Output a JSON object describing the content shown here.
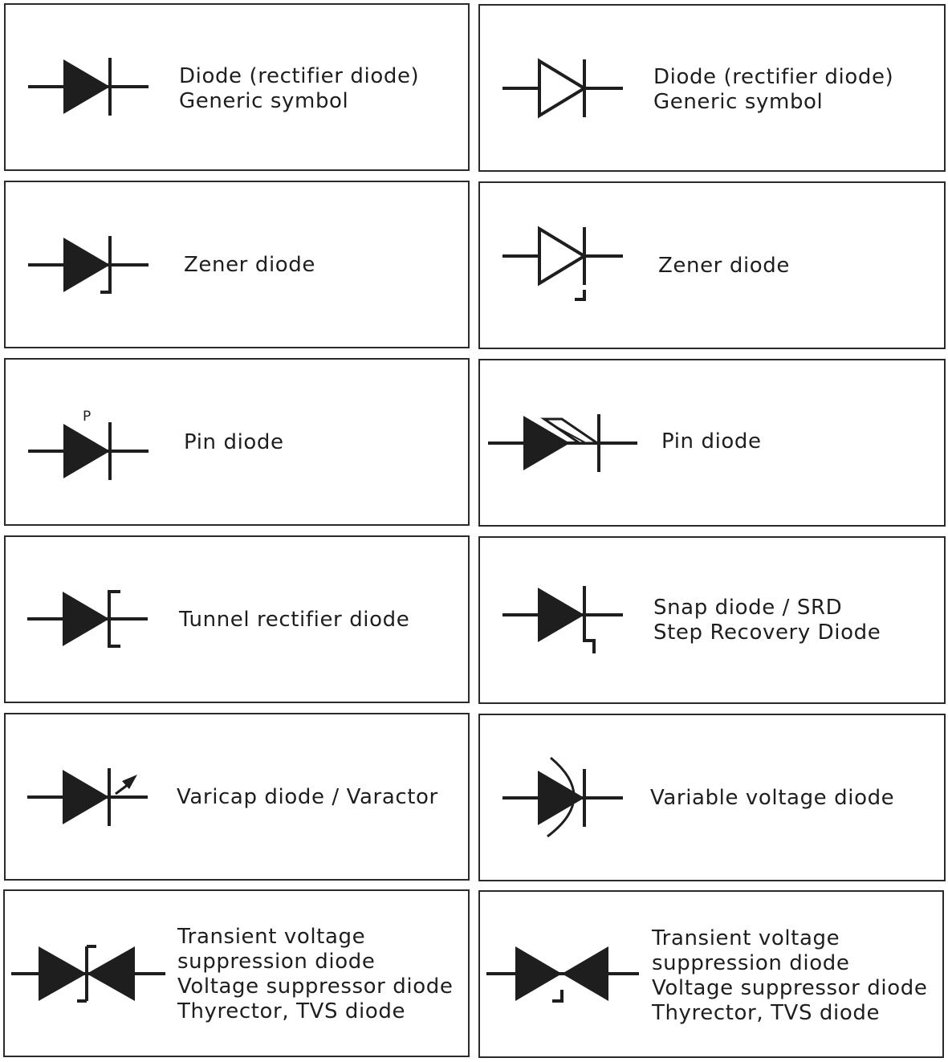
{
  "symbols": [
    {
      "id": "generic-filled",
      "lines": [
        "Diode (rectifier diode)",
        "Generic symbol"
      ]
    },
    {
      "id": "generic-outline",
      "lines": [
        "Diode (rectifier diode)",
        "Generic symbol"
      ]
    },
    {
      "id": "zener-filled",
      "lines": [
        "Zener diode"
      ]
    },
    {
      "id": "zener-outline",
      "lines": [
        "Zener diode"
      ]
    },
    {
      "id": "pin-filled",
      "lines": [
        "Pin diode"
      ],
      "symbol_text": "P"
    },
    {
      "id": "pin-hatched",
      "lines": [
        "Pin diode"
      ]
    },
    {
      "id": "tunnel",
      "lines": [
        "Tunnel rectifier diode"
      ]
    },
    {
      "id": "snap",
      "lines": [
        "Snap diode / SRD",
        "Step Recovery Diode"
      ]
    },
    {
      "id": "varicap",
      "lines": [
        "Varicap diode / Varactor"
      ]
    },
    {
      "id": "variable-voltage",
      "lines": [
        "Variable voltage diode"
      ]
    },
    {
      "id": "tvs-filled",
      "lines": [
        "Transient voltage",
        "suppression diode",
        "Voltage suppressor diode",
        "Thyrector, TVS diode"
      ]
    },
    {
      "id": "tvs-outline",
      "lines": [
        "Transient voltage",
        "suppression diode",
        "Voltage suppressor diode",
        "Thyrector, TVS diode"
      ]
    }
  ]
}
